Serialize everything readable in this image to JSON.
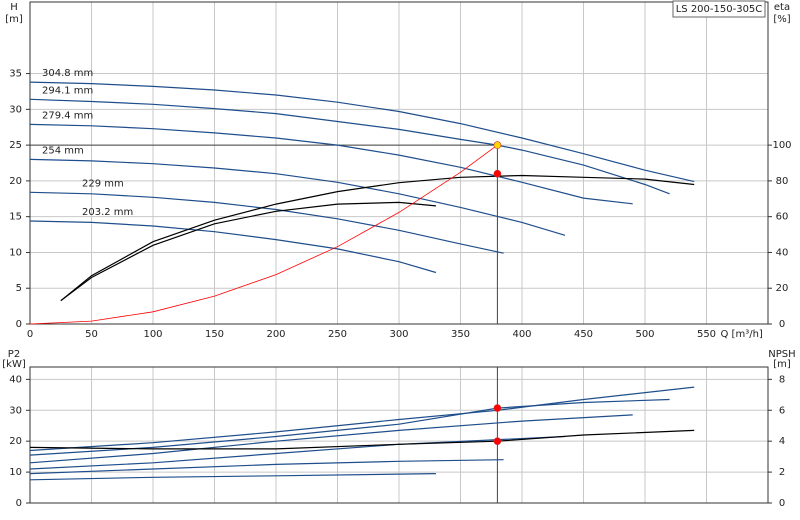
{
  "chart_data": [
    {
      "type": "line",
      "title": "LS 200-150-305C",
      "y_label": "H",
      "y_unit": "[m]",
      "y2_label": "eta",
      "y2_unit": "[%]",
      "x_label": "Q [m³/h]",
      "xlim": [
        0,
        600
      ],
      "xticks": [
        0,
        50,
        100,
        150,
        200,
        250,
        300,
        350,
        400,
        450,
        500,
        550
      ],
      "ylim": [
        0,
        45
      ],
      "yticks": [
        0,
        5,
        10,
        15,
        20,
        25,
        30,
        35
      ],
      "y2lim": [
        0,
        180
      ],
      "y2ticks": [
        0,
        20,
        40,
        60,
        80,
        100
      ],
      "grid": true,
      "series": [
        {
          "name": "304.8 mm",
          "color": "#1f4e8c",
          "x": [
            0,
            50,
            100,
            150,
            200,
            250,
            300,
            350,
            400,
            450,
            500,
            540
          ],
          "values": [
            33.8,
            33.6,
            33.2,
            32.7,
            32.0,
            31.0,
            29.7,
            28.0,
            26.0,
            23.8,
            21.5,
            19.9
          ]
        },
        {
          "name": "294.1 mm",
          "color": "#1f4e8c",
          "x": [
            0,
            50,
            100,
            150,
            200,
            250,
            300,
            350,
            380,
            400,
            450,
            500,
            520
          ],
          "values": [
            31.4,
            31.1,
            30.7,
            30.1,
            29.4,
            28.3,
            27.2,
            25.8,
            25.0,
            24.3,
            22.2,
            19.5,
            18.2
          ]
        },
        {
          "name": "279.4 mm",
          "color": "#1f4e8c",
          "x": [
            0,
            50,
            100,
            150,
            200,
            250,
            300,
            350,
            400,
            450,
            490
          ],
          "values": [
            27.9,
            27.7,
            27.3,
            26.7,
            26.0,
            25.0,
            23.6,
            21.9,
            19.8,
            17.6,
            16.8
          ]
        },
        {
          "name": "254 mm",
          "color": "#1f4e8c",
          "x": [
            0,
            50,
            100,
            150,
            200,
            250,
            300,
            350,
            400,
            435
          ],
          "values": [
            23.0,
            22.8,
            22.4,
            21.8,
            21.0,
            19.8,
            18.2,
            16.3,
            14.2,
            12.4
          ]
        },
        {
          "name": "229 mm",
          "color": "#1f4e8c",
          "x": [
            0,
            50,
            100,
            150,
            200,
            250,
            300,
            350,
            385
          ],
          "values": [
            18.4,
            18.2,
            17.7,
            17.0,
            16.0,
            14.7,
            13.1,
            11.2,
            9.9
          ]
        },
        {
          "name": "203.2 mm",
          "color": "#1f4e8c",
          "x": [
            0,
            50,
            100,
            150,
            200,
            250,
            300,
            330
          ],
          "values": [
            14.4,
            14.2,
            13.7,
            12.9,
            11.8,
            10.5,
            8.7,
            7.2
          ]
        },
        {
          "axis": "y2",
          "color": "#000000",
          "x": [
            25,
            50,
            100,
            150,
            200,
            250,
            300,
            350,
            400,
            450,
            500,
            540
          ],
          "values": [
            13,
            27,
            46,
            58,
            67,
            74,
            79,
            82,
            83,
            82,
            81,
            78
          ]
        },
        {
          "axis": "y2",
          "color": "#000000",
          "x": [
            25,
            50,
            100,
            150,
            200,
            250,
            300,
            330
          ],
          "values": [
            13,
            26,
            44,
            56,
            63,
            67,
            68,
            66
          ]
        },
        {
          "color": "#ff0000",
          "x": [
            0,
            50,
            100,
            150,
            200,
            250,
            300,
            350,
            380
          ],
          "values": [
            0,
            0.4,
            1.7,
            3.9,
            6.9,
            10.8,
            15.6,
            21.2,
            25.0
          ]
        }
      ],
      "points": [
        {
          "x": 380,
          "y": 25,
          "color": "#ffd700",
          "guide": true
        },
        {
          "x": 380,
          "y": 84,
          "axis": "y2",
          "color": "#ff0000"
        }
      ]
    },
    {
      "type": "line",
      "y_label": "P2",
      "y_unit": "[kW]",
      "y2_label": "NPSH",
      "y2_unit": "[m]",
      "xlim": [
        0,
        600
      ],
      "ylim": [
        0,
        44
      ],
      "yticks": [
        0,
        10,
        20,
        30,
        40
      ],
      "y2lim": [
        0,
        8.8
      ],
      "y2ticks": [
        0,
        2,
        4,
        6,
        8
      ],
      "grid": true,
      "series": [
        {
          "color": "#1f4e8c",
          "x": [
            0,
            100,
            200,
            300,
            380,
            450,
            540
          ],
          "values": [
            17,
            19.5,
            23,
            27,
            30,
            33.5,
            37.5
          ]
        },
        {
          "color": "#1f4e8c",
          "x": [
            0,
            100,
            200,
            300,
            380,
            450,
            520
          ],
          "values": [
            15.5,
            18,
            21.5,
            25.5,
            30.7,
            32.5,
            33.5
          ]
        },
        {
          "color": "#1f4e8c",
          "x": [
            0,
            100,
            200,
            300,
            400,
            490
          ],
          "values": [
            13,
            16,
            20,
            23.5,
            26.5,
            28.5
          ]
        },
        {
          "color": "#1f4e8c",
          "x": [
            0,
            100,
            200,
            300,
            435
          ],
          "values": [
            11,
            13,
            16,
            19,
            21.5
          ]
        },
        {
          "color": "#1f4e8c",
          "x": [
            0,
            100,
            200,
            300,
            385
          ],
          "values": [
            9.5,
            11,
            12.5,
            13.5,
            14
          ]
        },
        {
          "color": "#1f4e8c",
          "x": [
            0,
            100,
            200,
            330
          ],
          "values": [
            7.5,
            8.3,
            8.8,
            9.5
          ]
        },
        {
          "axis": "y2",
          "color": "#000000",
          "x": [
            0,
            100,
            200,
            300,
            380,
            450,
            540
          ],
          "values": [
            3.6,
            3.5,
            3.5,
            3.8,
            4.0,
            4.4,
            4.7
          ]
        }
      ],
      "points": [
        {
          "x": 380,
          "y": 30.7,
          "color": "#ff0000",
          "guide": true
        },
        {
          "x": 380,
          "y": 4.0,
          "axis": "y2",
          "color": "#ff0000"
        }
      ]
    }
  ]
}
